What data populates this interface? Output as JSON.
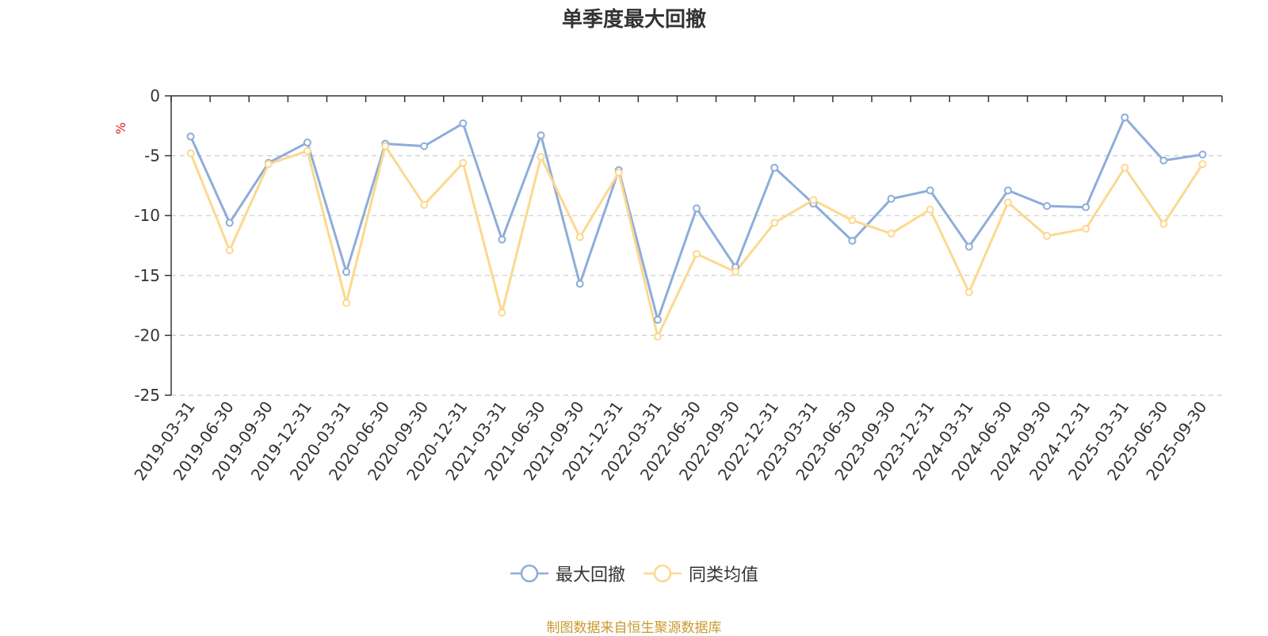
{
  "chart_data": {
    "type": "line",
    "title": "单季度最大回撤",
    "ylabel": "%",
    "xlabel": "",
    "ylim": [
      -25,
      0
    ],
    "yticks": [
      0,
      -5,
      -10,
      -15,
      -20,
      -25
    ],
    "grid": "horizontal-dashed",
    "legend_position": "bottom-center",
    "categories": [
      "2019-03-31",
      "2019-06-30",
      "2019-09-30",
      "2019-12-31",
      "2020-03-31",
      "2020-06-30",
      "2020-09-30",
      "2020-12-31",
      "2021-03-31",
      "2021-06-30",
      "2021-09-30",
      "2021-12-31",
      "2022-03-31",
      "2022-06-30",
      "2022-09-30",
      "2022-12-31",
      "2023-03-31",
      "2023-06-30",
      "2023-09-30",
      "2023-12-31",
      "2024-03-31",
      "2024-06-30",
      "2024-09-30",
      "2024-12-31",
      "2025-03-31",
      "2025-06-30",
      "2025-09-30"
    ],
    "series": [
      {
        "name": "最大回撤",
        "color": "#8eadd9",
        "values": [
          -3.4,
          -10.6,
          -5.6,
          -3.9,
          -14.7,
          -4.0,
          -4.2,
          -2.3,
          -12.0,
          -3.3,
          -15.7,
          -6.2,
          -18.7,
          -9.4,
          -14.3,
          -6.0,
          -9.0,
          -12.1,
          -8.6,
          -7.9,
          -12.6,
          -7.9,
          -9.2,
          -9.3,
          -1.8,
          -5.4,
          -4.9
        ]
      },
      {
        "name": "同类均值",
        "color": "#fcd88f",
        "values": [
          -4.8,
          -12.9,
          -5.7,
          -4.6,
          -17.3,
          -4.2,
          -9.1,
          -5.6,
          -18.1,
          -5.1,
          -11.8,
          -6.4,
          -20.1,
          -13.2,
          -14.7,
          -10.6,
          -8.7,
          -10.4,
          -11.5,
          -9.5,
          -16.4,
          -8.9,
          -11.7,
          -11.1,
          -6.0,
          -10.7,
          -5.7
        ]
      }
    ]
  },
  "source_note": "制图数据来自恒生聚源数据库"
}
